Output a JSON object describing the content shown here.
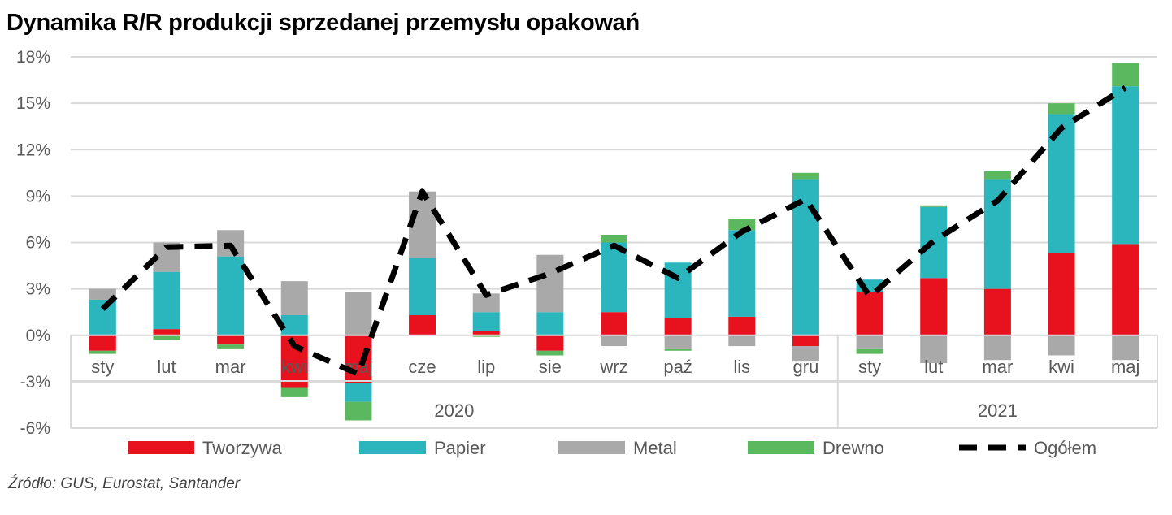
{
  "title": "Dynamika R/R produkcji sprzedanej przemysłu opakowań",
  "source": "Źródło: GUS, Eurostat, Santander",
  "colors": {
    "Tworzywa": "#e8111e",
    "Papier": "#2bb5bd",
    "Metal": "#a9a9a9",
    "Drewno": "#5cb85f",
    "Ogółem": "#000000",
    "grid": "#d9d9d9",
    "axis": "#d9d9d9"
  },
  "chart_data": {
    "type": "bar",
    "stacked": true,
    "categories": [
      "sty",
      "lut",
      "mar",
      "kwi",
      "maj",
      "cze",
      "lip",
      "sie",
      "wrz",
      "paź",
      "lis",
      "gru",
      "sty",
      "lut",
      "mar",
      "kwi",
      "maj"
    ],
    "groups": [
      {
        "label": "2020",
        "count": 12
      },
      {
        "label": "2021",
        "count": 5
      }
    ],
    "ylim": [
      -6,
      18
    ],
    "yticks": [
      -6,
      -3,
      0,
      3,
      6,
      9,
      12,
      15,
      18
    ],
    "ytick_labels": [
      "-6%",
      "-3%",
      "0%",
      "3%",
      "6%",
      "9%",
      "12%",
      "15%",
      "18%"
    ],
    "grid": true,
    "legend_position": "bottom",
    "series": [
      {
        "name": "Tworzywa",
        "kind": "bar",
        "values": [
          -1.0,
          0.4,
          -0.6,
          -3.4,
          -3.1,
          1.3,
          0.3,
          -1.0,
          1.5,
          1.1,
          1.2,
          -0.7,
          2.8,
          3.7,
          3.0,
          5.3,
          5.9
        ]
      },
      {
        "name": "Papier",
        "kind": "bar",
        "values": [
          2.3,
          3.7,
          5.1,
          1.3,
          -1.2,
          3.7,
          1.2,
          1.5,
          4.5,
          3.6,
          5.6,
          10.1,
          0.8,
          4.6,
          7.1,
          9.0,
          10.2
        ]
      },
      {
        "name": "Metal",
        "kind": "bar",
        "values": [
          0.7,
          1.9,
          1.7,
          2.2,
          2.8,
          4.3,
          1.2,
          3.7,
          -0.7,
          -0.9,
          -0.7,
          -1.0,
          -0.9,
          -1.8,
          -1.6,
          -1.3,
          -1.6
        ]
      },
      {
        "name": "Drewno",
        "kind": "bar",
        "values": [
          -0.2,
          -0.3,
          -0.3,
          -0.6,
          -1.2,
          0.0,
          -0.1,
          -0.3,
          0.5,
          -0.1,
          0.7,
          0.4,
          -0.3,
          0.1,
          0.5,
          0.7,
          1.5
        ]
      },
      {
        "name": "Ogółem",
        "kind": "line",
        "dashed": true,
        "values": [
          1.7,
          5.7,
          5.8,
          -0.7,
          -2.5,
          9.3,
          2.6,
          4.0,
          5.8,
          3.7,
          6.7,
          8.8,
          2.5,
          6.1,
          8.7,
          13.4,
          16.0
        ]
      }
    ]
  }
}
